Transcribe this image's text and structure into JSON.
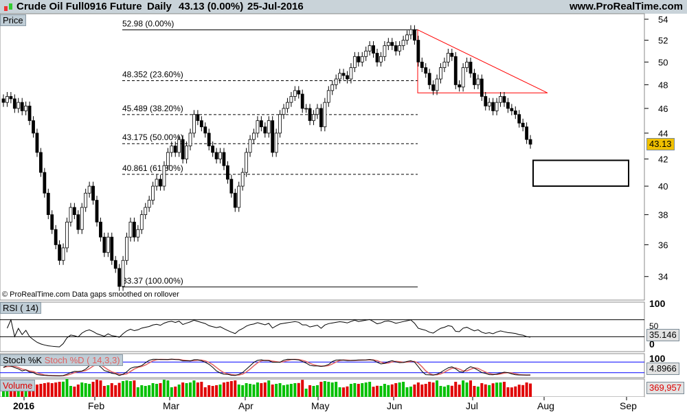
{
  "header": {
    "title": "Crude Oil Full0916 Future",
    "interval": "Daily",
    "price": "43.13 (0.00%)",
    "date": "25-Jul-2016",
    "site": "www.ProRealTime.com"
  },
  "panels": {
    "price": "Price",
    "rsi": "RSI ( 14)",
    "stoch_k": "Stoch %K",
    "stoch_d": "Stoch %D ( 14,3,3)",
    "volume": "Volume"
  },
  "values": {
    "price": "43.13",
    "rsi": "35.146",
    "stoch": "4.8966",
    "volume": "369,957"
  },
  "footnote": "© ProRealTime.com  Data gaps smoothed on rollover",
  "colors": {
    "up": "#ffffff",
    "down": "#000000",
    "trend": "#ff0000",
    "vol_up": "#00c000",
    "vol_down": "#e00000",
    "stoch_lines": "#0000ff"
  },
  "chart_data": {
    "type": "candlestick",
    "yscale": "log",
    "ylim": [
      33,
      54
    ],
    "yticks": [
      34,
      36,
      38,
      40,
      42,
      44,
      46,
      48,
      50,
      52,
      54
    ],
    "xticks": [
      "2016",
      "Feb",
      "Mar",
      "Apr",
      "May",
      "Jun",
      "Jul",
      "Aug",
      "Sep"
    ],
    "fib_levels": [
      {
        "label": "52.98 (0.00%)",
        "value": 52.98
      },
      {
        "label": "48.352 (23.60%)",
        "value": 48.352
      },
      {
        "label": "45.489 (38.20%)",
        "value": 45.489
      },
      {
        "label": "43.175 (50.00%)",
        "value": 43.175
      },
      {
        "label": "40.861 (61.80%)",
        "value": 40.861
      },
      {
        "label": "33.37 (100.00%)",
        "value": 33.37
      }
    ],
    "triangle": [
      52.98,
      47.3
    ],
    "target_box": [
      41.9,
      40.0
    ],
    "rsi_ticks": [
      "100",
      "50",
      "0"
    ],
    "stoch_ticks": [
      "100",
      "0"
    ],
    "closes": [
      46.5,
      47,
      46.8,
      46,
      46.5,
      45.8,
      46.2,
      45,
      44,
      42.5,
      41,
      39.5,
      38,
      37,
      36,
      35,
      35.8,
      37.5,
      38.5,
      38,
      37,
      38.5,
      39.5,
      40,
      39,
      37.5,
      36.5,
      35.5,
      36.5,
      35,
      34.5,
      33.4,
      35,
      36.5,
      37.5,
      36.5,
      37,
      38,
      38.5,
      39,
      40,
      40.5,
      40,
      41.5,
      42.5,
      43,
      42.5,
      43.5,
      42,
      43,
      44,
      45.5,
      45,
      44.5,
      44,
      43,
      42.5,
      42,
      42.5,
      41.5,
      40.5,
      39.5,
      38.5,
      40,
      41,
      42.5,
      43.5,
      44,
      45,
      44.5,
      44,
      45,
      42.5,
      44,
      45.5,
      46,
      46.5,
      47,
      47.5,
      47.2,
      46,
      46,
      45,
      45.5,
      46,
      44.5,
      46.5,
      47.5,
      48,
      48.5,
      49,
      48.8,
      48.5,
      49.5,
      50.5,
      50,
      50.5,
      51,
      51.5,
      50.8,
      50,
      50.5,
      51.5,
      51.8,
      51.5,
      51,
      51.5,
      52,
      52.5,
      53,
      52,
      50,
      49.5,
      49,
      48,
      47.5,
      48.5,
      49.5,
      50,
      50.8,
      50.5,
      48,
      47.8,
      49.5,
      50,
      49,
      48,
      48.5,
      47,
      46.2,
      46.5,
      45.8,
      46.5,
      47,
      46.5,
      46,
      45.8,
      45.5,
      44.8,
      44.5,
      43.5,
      43.13
    ]
  }
}
